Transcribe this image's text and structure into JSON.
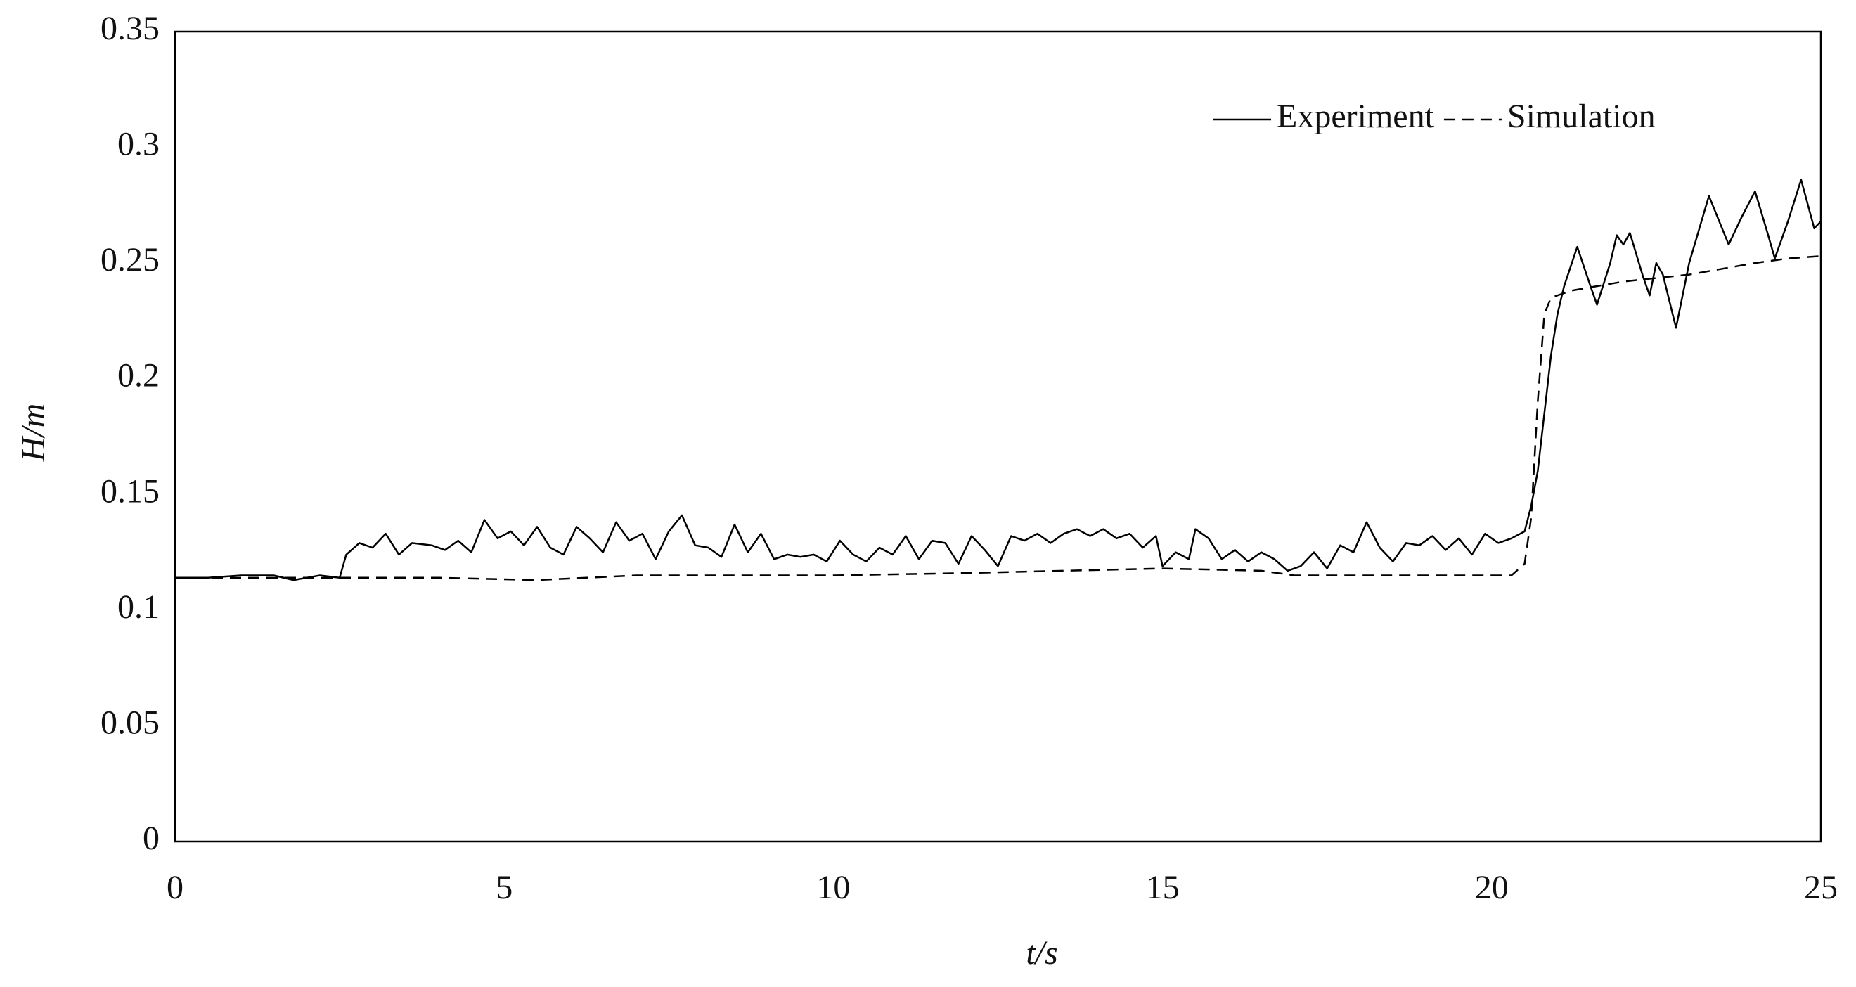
{
  "chart_data": {
    "type": "line",
    "x_label": "t/s",
    "y_label": "H/m",
    "xlim": [
      0,
      25
    ],
    "xticks": [
      0,
      5,
      10,
      15,
      20,
      25
    ],
    "ylim": [
      0,
      0.35
    ],
    "yticks": [
      0,
      0.05,
      0.1,
      0.15,
      0.2,
      0.25,
      0.3,
      0.35
    ],
    "grid": false,
    "legend": "upper right",
    "series": [
      {
        "name": "Experiment",
        "color": "#000000",
        "dash": "solid",
        "x": [
          0,
          0.5,
          1,
          1.5,
          1.8,
          2.2,
          2.5,
          2.6,
          2.8,
          3.0,
          3.2,
          3.4,
          3.6,
          3.9,
          4.1,
          4.3,
          4.5,
          4.7,
          4.9,
          5.1,
          5.3,
          5.5,
          5.7,
          5.9,
          6.1,
          6.3,
          6.5,
          6.7,
          6.9,
          7.1,
          7.3,
          7.5,
          7.7,
          7.9,
          8.1,
          8.3,
          8.5,
          8.7,
          8.9,
          9.1,
          9.3,
          9.5,
          9.7,
          9.9,
          10.1,
          10.3,
          10.5,
          10.7,
          10.9,
          11.1,
          11.3,
          11.5,
          11.7,
          11.9,
          12.1,
          12.3,
          12.5,
          12.7,
          12.9,
          13.1,
          13.3,
          13.5,
          13.7,
          13.9,
          14.1,
          14.3,
          14.5,
          14.7,
          14.9,
          15.0,
          15.2,
          15.4,
          15.5,
          15.7,
          15.9,
          16.1,
          16.3,
          16.5,
          16.7,
          16.9,
          17.1,
          17.3,
          17.5,
          17.7,
          17.9,
          18.1,
          18.3,
          18.5,
          18.7,
          18.9,
          19.1,
          19.3,
          19.5,
          19.7,
          19.9,
          20.1,
          20.3,
          20.5,
          20.6,
          20.7,
          20.8,
          20.9,
          21.0,
          21.1,
          21.3,
          21.5,
          21.6,
          21.8,
          21.9,
          22.0,
          22.1,
          22.3,
          22.4,
          22.5,
          22.6,
          22.8,
          23.0,
          23.3,
          23.5,
          23.6,
          23.8,
          24.0,
          24.2,
          24.3,
          24.5,
          24.7,
          24.9,
          25.0
        ],
        "values": [
          0.114,
          0.114,
          0.115,
          0.115,
          0.113,
          0.115,
          0.114,
          0.124,
          0.129,
          0.127,
          0.133,
          0.124,
          0.129,
          0.128,
          0.126,
          0.13,
          0.125,
          0.139,
          0.131,
          0.134,
          0.128,
          0.136,
          0.127,
          0.124,
          0.136,
          0.131,
          0.125,
          0.138,
          0.13,
          0.133,
          0.122,
          0.134,
          0.141,
          0.128,
          0.127,
          0.123,
          0.137,
          0.125,
          0.133,
          0.122,
          0.124,
          0.123,
          0.124,
          0.121,
          0.13,
          0.124,
          0.121,
          0.127,
          0.124,
          0.132,
          0.122,
          0.13,
          0.129,
          0.12,
          0.132,
          0.126,
          0.119,
          0.132,
          0.13,
          0.133,
          0.129,
          0.133,
          0.135,
          0.132,
          0.135,
          0.131,
          0.133,
          0.127,
          0.132,
          0.119,
          0.125,
          0.122,
          0.135,
          0.131,
          0.122,
          0.126,
          0.121,
          0.125,
          0.122,
          0.117,
          0.119,
          0.125,
          0.118,
          0.128,
          0.125,
          0.138,
          0.127,
          0.121,
          0.129,
          0.128,
          0.132,
          0.126,
          0.131,
          0.124,
          0.133,
          0.129,
          0.131,
          0.134,
          0.145,
          0.16,
          0.185,
          0.21,
          0.228,
          0.24,
          0.257,
          0.24,
          0.232,
          0.25,
          0.262,
          0.258,
          0.263,
          0.244,
          0.236,
          0.25,
          0.245,
          0.222,
          0.25,
          0.279,
          0.265,
          0.258,
          0.27,
          0.281,
          0.262,
          0.252,
          0.268,
          0.286,
          0.265,
          0.268
        ]
      },
      {
        "name": "Simulation",
        "color": "#000000",
        "dash": "dashed",
        "x": [
          0,
          2,
          4,
          5.5,
          7,
          10,
          12,
          15,
          16.5,
          17,
          20.3,
          20.5,
          20.6,
          20.7,
          20.8,
          20.9,
          21.2,
          22,
          23,
          24,
          24.5,
          25
        ],
        "values": [
          0.114,
          0.114,
          0.114,
          0.113,
          0.115,
          0.115,
          0.116,
          0.118,
          0.117,
          0.115,
          0.115,
          0.12,
          0.14,
          0.19,
          0.228,
          0.235,
          0.238,
          0.242,
          0.245,
          0.25,
          0.252,
          0.253
        ]
      }
    ]
  }
}
